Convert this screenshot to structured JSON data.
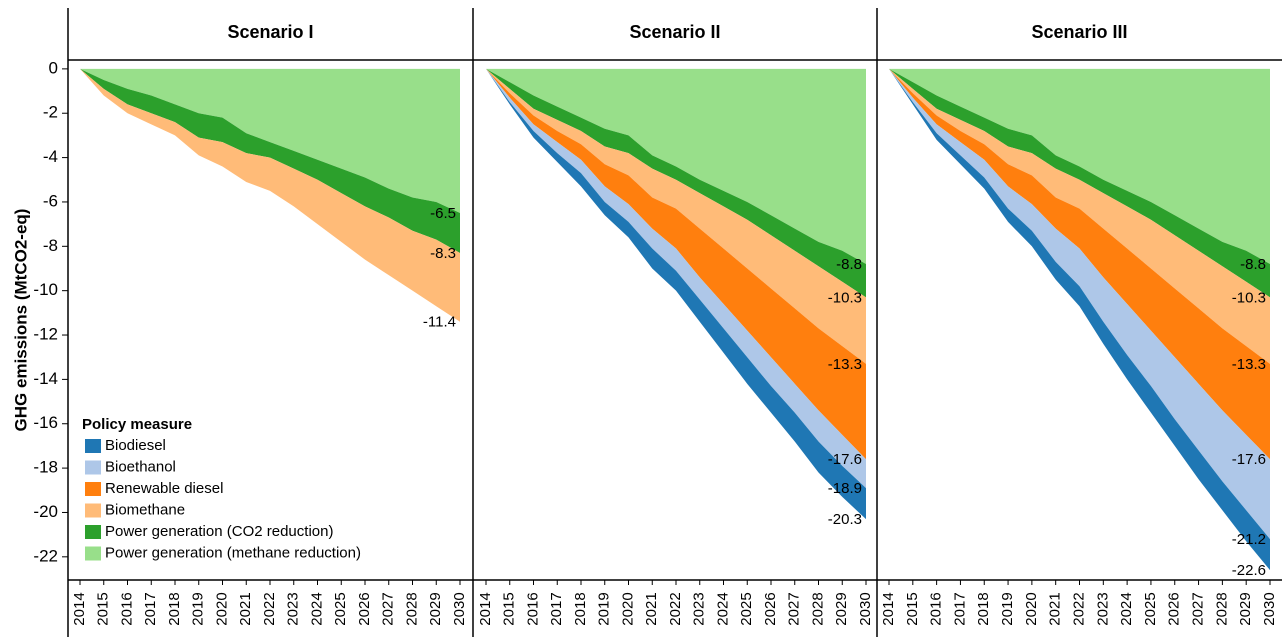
{
  "chart_data": [
    {
      "type": "area",
      "stacked": true,
      "title": "Scenario I",
      "ylabel": "GHG emissions (MtCO2-eq)",
      "x": [
        2014,
        2015,
        2016,
        2017,
        2018,
        2019,
        2020,
        2021,
        2022,
        2023,
        2024,
        2025,
        2026,
        2027,
        2028,
        2029,
        2030
      ],
      "xlim": [
        2014,
        2030
      ],
      "ylim": [
        0.4,
        -23
      ],
      "yticks": [
        0,
        -2,
        -4,
        -6,
        -8,
        -10,
        -12,
        -14,
        -16,
        -18,
        -20,
        -22
      ],
      "legend": {
        "title": "Policy measure",
        "position": "lower left"
      },
      "series": [
        {
          "name": "Biodiesel",
          "color": "#1f77b4",
          "values": [
            0,
            0,
            0,
            0,
            0,
            0,
            0,
            0,
            0,
            0,
            0,
            0,
            0,
            0,
            0,
            0,
            0
          ]
        },
        {
          "name": "Bioethanol",
          "color": "#aec7e8",
          "values": [
            0,
            0,
            0,
            0,
            0,
            0,
            0,
            0,
            0,
            0,
            0,
            0,
            0,
            0,
            0,
            0,
            0
          ]
        },
        {
          "name": "Renewable diesel",
          "color": "#ff7f0e",
          "values": [
            0,
            0,
            0,
            0,
            0,
            0,
            0,
            0,
            0,
            0,
            0,
            0,
            0,
            0,
            0,
            0,
            0
          ]
        },
        {
          "name": "Biomethane",
          "color": "#ffbb78",
          "values": [
            0,
            -0.3,
            -0.4,
            -0.5,
            -0.6,
            -0.8,
            -1.1,
            -1.3,
            -1.5,
            -1.7,
            -2.0,
            -2.2,
            -2.4,
            -2.6,
            -2.7,
            -3.0,
            -3.1
          ]
        },
        {
          "name": "Power generation (CO2 reduction)",
          "color": "#2ca02c",
          "values": [
            0,
            -0.4,
            -0.7,
            -0.8,
            -0.8,
            -1.1,
            -1.1,
            -0.9,
            -0.7,
            -0.8,
            -0.9,
            -1.1,
            -1.3,
            -1.3,
            -1.5,
            -1.7,
            -1.8
          ]
        },
        {
          "name": "Power generation (methane reduction)",
          "color": "#98df8a",
          "values": [
            0,
            -0.5,
            -0.9,
            -1.2,
            -1.6,
            -2.0,
            -2.2,
            -2.9,
            -3.3,
            -3.7,
            -4.1,
            -4.5,
            -4.9,
            -5.4,
            -5.8,
            -6.0,
            -6.5
          ]
        }
      ],
      "end_labels": [
        -6.5,
        -8.3,
        -11.4
      ]
    },
    {
      "type": "area",
      "stacked": true,
      "title": "Scenario II",
      "x": [
        2014,
        2015,
        2016,
        2017,
        2018,
        2019,
        2020,
        2021,
        2022,
        2023,
        2024,
        2025,
        2026,
        2027,
        2028,
        2029,
        2030
      ],
      "xlim": [
        2014,
        2030
      ],
      "ylim": [
        0.4,
        -23
      ],
      "series": [
        {
          "name": "Biodiesel",
          "color": "#1f77b4",
          "values": [
            0,
            -0.1,
            -0.3,
            -0.4,
            -0.6,
            -0.6,
            -0.7,
            -0.9,
            -0.9,
            -1.0,
            -1.1,
            -1.2,
            -1.2,
            -1.3,
            -1.4,
            -1.4,
            -1.4
          ]
        },
        {
          "name": "Bioethanol",
          "color": "#aec7e8",
          "values": [
            0,
            -0.2,
            -0.3,
            -0.5,
            -0.6,
            -0.7,
            -0.8,
            -0.9,
            -1.0,
            -1.0,
            -1.1,
            -1.2,
            -1.3,
            -1.3,
            -1.4,
            -1.4,
            -1.3
          ]
        },
        {
          "name": "Renewable diesel",
          "color": "#ff7f0e",
          "values": [
            0,
            -0.2,
            -0.4,
            -0.5,
            -0.7,
            -1.0,
            -1.3,
            -1.4,
            -1.8,
            -2.2,
            -2.5,
            -2.8,
            -3.1,
            -3.4,
            -3.7,
            -4.0,
            -4.3
          ]
        },
        {
          "name": "Biomethane",
          "color": "#ffbb78",
          "values": [
            0,
            -0.2,
            -0.3,
            -0.5,
            -0.6,
            -0.8,
            -1.0,
            -1.3,
            -1.3,
            -1.6,
            -1.9,
            -2.2,
            -2.4,
            -2.6,
            -2.8,
            -2.9,
            -3.0
          ]
        },
        {
          "name": "Power generation (CO2 reduction)",
          "color": "#2ca02c",
          "values": [
            0,
            -0.3,
            -0.6,
            -0.6,
            -0.6,
            -0.8,
            -0.8,
            -0.6,
            -0.6,
            -0.6,
            -0.7,
            -0.8,
            -0.9,
            -1.0,
            -1.1,
            -1.4,
            -1.5
          ]
        },
        {
          "name": "Power generation (methane reduction)",
          "color": "#98df8a",
          "values": [
            0,
            -0.6,
            -1.2,
            -1.7,
            -2.2,
            -2.7,
            -3.0,
            -3.9,
            -4.4,
            -5.0,
            -5.5,
            -6.0,
            -6.6,
            -7.2,
            -7.8,
            -8.2,
            -8.8
          ]
        }
      ],
      "end_labels": [
        -8.8,
        -10.3,
        -13.3,
        -17.6,
        -18.9,
        -20.3
      ]
    },
    {
      "type": "area",
      "stacked": true,
      "title": "Scenario III",
      "x": [
        2014,
        2015,
        2016,
        2017,
        2018,
        2019,
        2020,
        2021,
        2022,
        2023,
        2024,
        2025,
        2026,
        2027,
        2028,
        2029,
        2030
      ],
      "xlim": [
        2014,
        2030
      ],
      "ylim": [
        0.4,
        -23
      ],
      "series": [
        {
          "name": "Biodiesel",
          "color": "#1f77b4",
          "values": [
            0,
            -0.1,
            -0.3,
            -0.4,
            -0.5,
            -0.6,
            -0.7,
            -0.8,
            -0.9,
            -1.0,
            -1.1,
            -1.2,
            -1.2,
            -1.3,
            -1.3,
            -1.4,
            -1.4
          ]
        },
        {
          "name": "Bioethanol",
          "color": "#aec7e8",
          "values": [
            0,
            -0.2,
            -0.4,
            -0.6,
            -0.8,
            -1.0,
            -1.2,
            -1.5,
            -1.7,
            -2.0,
            -2.3,
            -2.5,
            -2.8,
            -3.0,
            -3.2,
            -3.4,
            -3.6
          ]
        },
        {
          "name": "Renewable diesel",
          "color": "#ff7f0e",
          "values": [
            0,
            -0.2,
            -0.4,
            -0.5,
            -0.7,
            -1.0,
            -1.3,
            -1.4,
            -1.8,
            -2.2,
            -2.5,
            -2.8,
            -3.1,
            -3.4,
            -3.7,
            -4.0,
            -4.3
          ]
        },
        {
          "name": "Biomethane",
          "color": "#ffbb78",
          "values": [
            0,
            -0.2,
            -0.3,
            -0.5,
            -0.6,
            -0.8,
            -1.0,
            -1.3,
            -1.3,
            -1.6,
            -1.9,
            -2.2,
            -2.4,
            -2.6,
            -2.8,
            -2.9,
            -3.0
          ]
        },
        {
          "name": "Power generation (CO2 reduction)",
          "color": "#2ca02c",
          "values": [
            0,
            -0.3,
            -0.6,
            -0.6,
            -0.6,
            -0.8,
            -0.8,
            -0.6,
            -0.6,
            -0.6,
            -0.7,
            -0.8,
            -0.9,
            -1.0,
            -1.1,
            -1.4,
            -1.5
          ]
        },
        {
          "name": "Power generation (methane reduction)",
          "color": "#98df8a",
          "values": [
            0,
            -0.6,
            -1.2,
            -1.7,
            -2.2,
            -2.7,
            -3.0,
            -3.9,
            -4.4,
            -5.0,
            -5.5,
            -6.0,
            -6.6,
            -7.2,
            -7.8,
            -8.2,
            -8.8
          ]
        }
      ],
      "end_labels": [
        -8.8,
        -10.3,
        -13.3,
        -17.6,
        -21.2,
        -22.6
      ]
    }
  ]
}
